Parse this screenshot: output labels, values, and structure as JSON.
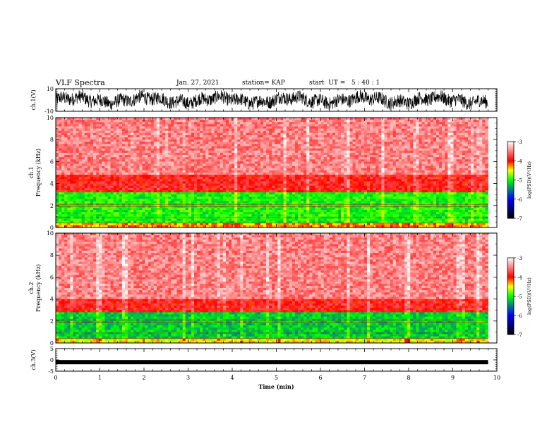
{
  "header": {
    "title": "VLF Spectra",
    "date": "Jan. 27, 2021",
    "station": "station= KAP",
    "start_ut": "start  UT =   5 : 40 : 1"
  },
  "chart_data": [
    {
      "type": "line",
      "panel": "ch1-waveform",
      "ylabel": "ch.1(V)",
      "ylim": [
        -10,
        10
      ],
      "yticks": [
        "10",
        "-10"
      ],
      "xlim": [
        0,
        10
      ],
      "note_series": "noisy black waveform spanning approx -8 to 8 V over 0 to 9.8 min"
    },
    {
      "type": "heatmap",
      "panel": "ch1-spectrogram",
      "ylabel": "ch.1",
      "ylabel2": "Frequency (kHz)",
      "ylim": [
        0,
        10
      ],
      "yticks": [
        "0",
        "2",
        "4",
        "6",
        "8",
        "10"
      ],
      "xlim": [
        0,
        10
      ],
      "data_extent_min": 9.8,
      "bands": [
        {
          "from_khz": 0,
          "to_khz": 0.5,
          "level": -4.3
        },
        {
          "from_khz": 0.5,
          "to_khz": 3.2,
          "level": -5.0
        },
        {
          "from_khz": 3.2,
          "to_khz": 4.8,
          "level": -3.9
        },
        {
          "from_khz": 4.8,
          "to_khz": 10,
          "level": -3.5
        }
      ],
      "colorbar": {
        "label": "log(PSD)(V²/Hz)",
        "ticks": [
          "-3",
          "-4",
          "-5",
          "-6",
          "-7"
        ],
        "range": [
          -7,
          -3
        ]
      }
    },
    {
      "type": "heatmap",
      "panel": "ch2-spectrogram",
      "ylabel": "ch.2",
      "ylabel2": "Frequency (kHz)",
      "ylim": [
        0,
        10
      ],
      "yticks": [
        "0",
        "2",
        "4",
        "6",
        "8",
        "10"
      ],
      "xlim": [
        0,
        10
      ],
      "data_extent_min": 9.8,
      "bands": [
        {
          "from_khz": 0,
          "to_khz": 0.4,
          "level": -4.5
        },
        {
          "from_khz": 0.4,
          "to_khz": 2.8,
          "level": -5.2
        },
        {
          "from_khz": 2.8,
          "to_khz": 4.0,
          "level": -3.9
        },
        {
          "from_khz": 4.0,
          "to_khz": 10,
          "level": -3.5
        }
      ],
      "colorbar": {
        "label": "log(PSD)(V²/Hz)",
        "ticks": [
          "-3",
          "-4",
          "-5",
          "-6",
          "-7"
        ],
        "range": [
          -7,
          -3
        ]
      }
    },
    {
      "type": "line",
      "panel": "ch3-waveform",
      "ylabel": "ch.3(V)",
      "ylim": [
        -5,
        5
      ],
      "yticks": [
        "5",
        "0",
        "-5"
      ],
      "xlim": [
        0,
        10
      ],
      "xlabel": "Time  (min)",
      "xticks": [
        "0",
        "1",
        "2",
        "3",
        "4",
        "5",
        "6",
        "7",
        "8",
        "9",
        "10"
      ],
      "note_series": "dense near-constant trace at approx -1 V from 0 to 9.8 min"
    }
  ],
  "colors": {
    "waveform": "#000000",
    "colormap": [
      "#000000",
      "#0000ff",
      "#00ff00",
      "#ffff00",
      "#ff0000",
      "#ffffff"
    ]
  }
}
